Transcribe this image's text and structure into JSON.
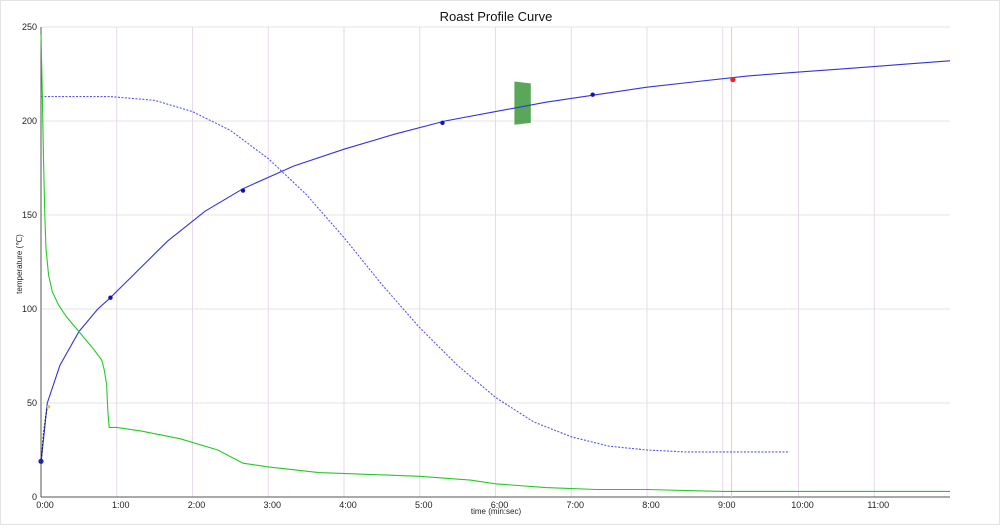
{
  "chart_data": {
    "type": "line",
    "title": "Roast Profile Curve",
    "xlabel": "time (min:sec)",
    "ylabel": "temperature (℃)",
    "xlim_seconds": [
      0,
      720
    ],
    "ylim": [
      0,
      250
    ],
    "grid": true,
    "x_ticks": [
      {
        "t": 0,
        "label": "0:00"
      },
      {
        "t": 60,
        "label": "1:00"
      },
      {
        "t": 120,
        "label": "2:00"
      },
      {
        "t": 180,
        "label": "3:00"
      },
      {
        "t": 240,
        "label": "4:00"
      },
      {
        "t": 300,
        "label": "5:00"
      },
      {
        "t": 360,
        "label": "6:00"
      },
      {
        "t": 420,
        "label": "7:00"
      },
      {
        "t": 480,
        "label": "8:00"
      },
      {
        "t": 540,
        "label": "9:00"
      },
      {
        "t": 600,
        "label": "10:00"
      },
      {
        "t": 660,
        "label": "11:00"
      }
    ],
    "y_ticks": [
      0,
      50,
      100,
      150,
      200,
      250
    ],
    "series": [
      {
        "color": "#3333dd",
        "style": "solid",
        "x": [
          0,
          5,
          15,
          30,
          45,
          55,
          70,
          100,
          130,
          160,
          200,
          240,
          280,
          320,
          360,
          400,
          440,
          480,
          520,
          560,
          600,
          640,
          680,
          720
        ],
        "y": [
          18,
          50,
          70,
          88,
          100,
          106,
          116,
          136,
          152,
          164,
          176,
          185,
          193,
          200,
          205,
          210,
          214,
          218,
          221,
          224,
          226,
          228,
          230,
          232
        ],
        "markers_x": [
          55,
          160,
          318,
          437,
          548
        ],
        "markers_y": [
          106,
          163,
          199,
          214,
          222
        ]
      },
      {
        "color": "#5555ee",
        "style": "dotted",
        "x": [
          0,
          30,
          55,
          90,
          120,
          150,
          180,
          210,
          240,
          270,
          300,
          330,
          360,
          390,
          420,
          450,
          480,
          510,
          550,
          593
        ],
        "y": [
          213,
          213,
          213,
          211,
          205,
          195,
          180,
          161,
          138,
          113,
          90,
          70,
          53,
          40,
          32,
          27,
          25,
          24,
          24,
          24
        ]
      },
      {
        "color": "#22cc22",
        "style": "solid",
        "x": [
          0,
          1,
          2,
          3,
          4,
          6,
          9,
          14,
          20,
          30,
          40,
          48,
          50,
          52,
          53,
          54,
          60,
          80,
          110,
          140,
          160,
          180,
          220,
          260,
          300,
          340,
          360,
          400,
          440,
          480,
          540,
          600,
          660,
          720
        ],
        "y": [
          246,
          215,
          180,
          150,
          132,
          118,
          109,
          102,
          96,
          88,
          80,
          73,
          68,
          60,
          45,
          37,
          37,
          35,
          31,
          25,
          18,
          16,
          13,
          12,
          11,
          9,
          7,
          5,
          4,
          4,
          3,
          3,
          3,
          3
        ]
      },
      {
        "color": "#222222",
        "style": "dotted",
        "x": [
          0,
          2,
          4,
          5
        ],
        "y": [
          18,
          34,
          44,
          48
        ]
      }
    ],
    "point_markers": [
      {
        "x": 0,
        "y": 19,
        "color": "#2222aa"
      },
      {
        "x": 548,
        "y": 222,
        "color": "#ee2222"
      }
    ],
    "small_markers": [
      {
        "x": 6,
        "y": 48,
        "color": "#ddcc33"
      }
    ],
    "vertical_marker_x": 547,
    "shaded_band": {
      "x": [
        375,
        388,
        388,
        375
      ],
      "y": [
        221,
        220,
        199,
        198
      ],
      "color": "#228b22"
    }
  }
}
